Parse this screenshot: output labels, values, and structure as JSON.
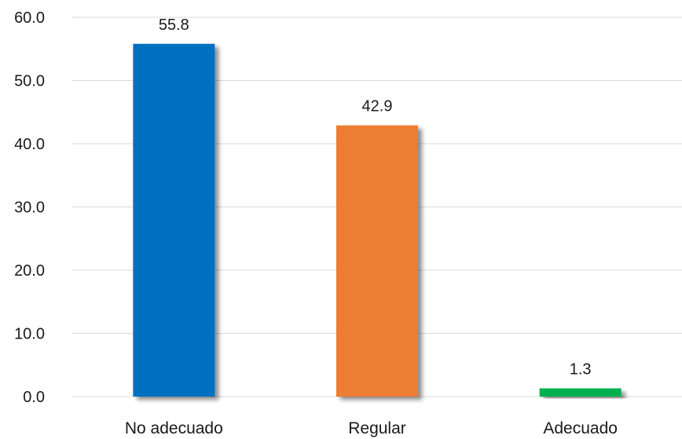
{
  "chart_data": {
    "type": "bar",
    "categories": [
      "No adecuado",
      "Regular",
      "Adecuado"
    ],
    "values": [
      55.8,
      42.9,
      1.3
    ],
    "data_labels": [
      "55.8",
      "42.9",
      "1.3"
    ],
    "colors": [
      "#0070C0",
      "#ED7D31",
      "#00B050"
    ],
    "title": "",
    "xlabel": "",
    "ylabel": "",
    "ylim": [
      0,
      60
    ],
    "yticks": [
      0,
      10,
      20,
      30,
      40,
      50,
      60
    ],
    "ytick_labels": [
      "0.0",
      "10.0",
      "20.0",
      "30.0",
      "40.0",
      "50.0",
      "60.0"
    ],
    "grid": true,
    "legend": "none"
  }
}
